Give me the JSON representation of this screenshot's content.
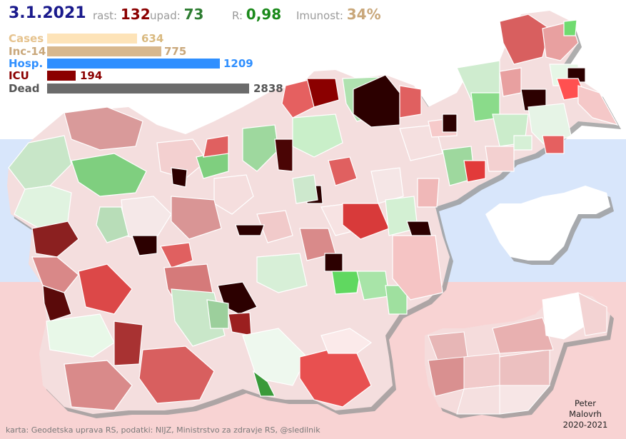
{
  "date": "3.1.2021",
  "header": {
    "rast_label": "rast:",
    "rast_value": "132",
    "upad_label": "upad:",
    "upad_value": "73",
    "r_label": "R:",
    "r_value": "0,98",
    "imunost_label": "Imunost:",
    "imunost_value": "34%"
  },
  "legend_bars": [
    {
      "label": "Cases",
      "value": "634",
      "color": "#fde3b8",
      "label_color": "#e6c38e",
      "value_color": "#d9b97f"
    },
    {
      "label": "Inc-14",
      "value": "775",
      "color": "#d8b88e",
      "label_color": "#c9a77a",
      "value_color": "#c9a77a"
    },
    {
      "label": "Hosp.",
      "value": "1209",
      "color": "#2f8fff",
      "label_color": "#2f8fff",
      "value_color": "#2f8fff"
    },
    {
      "label": "ICU",
      "value": "194",
      "color": "#8b0000",
      "label_color": "#8b0000",
      "value_color": "#8b0000"
    },
    {
      "label": "Dead",
      "value": "2838",
      "color": "#6b6b6b",
      "label_color": "#555555",
      "value_color": "#555555"
    }
  ],
  "colors": {
    "band_top": "#ffffff",
    "band_middle": "#d8e6fb",
    "band_bottom": "#f8d3d3",
    "rast": "#8b0000",
    "upad": "#2e7d32",
    "r_value": "#1b8a1b",
    "imunost": "#c9a77a",
    "date": "#1a1a8c"
  },
  "footer": {
    "credit": "karta: Geodetska uprava RS,  podatki: NIJZ, Ministrstvo za zdravje RS, @sledilnik",
    "author_line1": "Peter",
    "author_line2": "Malovrh",
    "author_line3": "2020-2021"
  }
}
